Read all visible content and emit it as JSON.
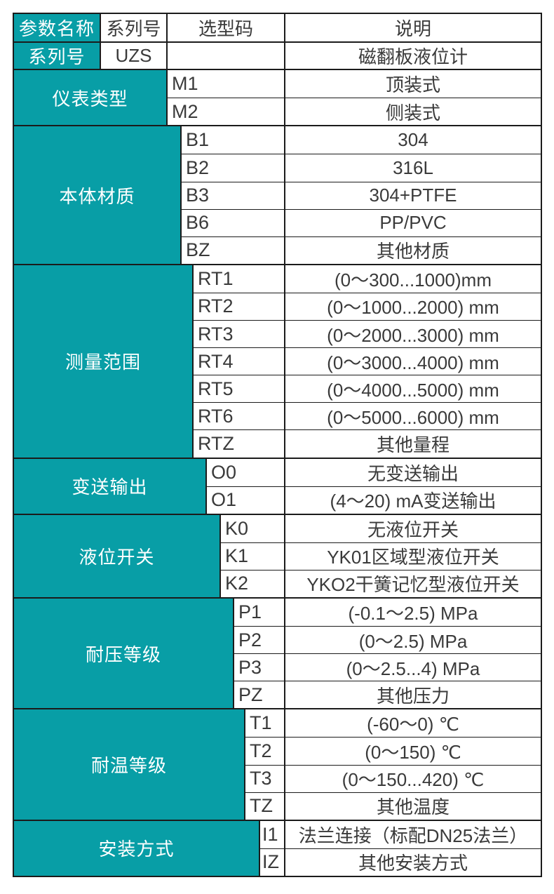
{
  "colors": {
    "teal": "#089ea6",
    "border": "#1b1b1b",
    "text": "#3a3a3a",
    "background": "#ffffff"
  },
  "table": {
    "header": {
      "param_name": "参数名称",
      "series_no": "系列号",
      "selection_code": "选型码",
      "description": "说明"
    },
    "series": {
      "label": "系列号",
      "code": "UZS",
      "desc": "磁翻板液位计"
    },
    "groups": [
      {
        "label": "仪表类型",
        "rows": [
          {
            "code": "M1",
            "desc": "顶装式"
          },
          {
            "code": "M2",
            "desc": "侧装式"
          }
        ]
      },
      {
        "label": "本体材质",
        "rows": [
          {
            "code": "B1",
            "desc": "304"
          },
          {
            "code": "B2",
            "desc": "316L"
          },
          {
            "code": "B3",
            "desc": "304+PTFE"
          },
          {
            "code": "B6",
            "desc": "PP/PVC"
          },
          {
            "code": "BZ",
            "desc": "其他材质"
          }
        ]
      },
      {
        "label": "测量范围",
        "rows": [
          {
            "code": "RT1",
            "desc": "(0～300...1000)mm"
          },
          {
            "code": "RT2",
            "desc": "(0～1000...2000) mm"
          },
          {
            "code": "RT3",
            "desc": "(0～2000...3000) mm"
          },
          {
            "code": "RT4",
            "desc": "(0～3000...4000) mm"
          },
          {
            "code": "RT5",
            "desc": "(0～4000...5000) mm"
          },
          {
            "code": "RT6",
            "desc": "(0～5000...6000) mm"
          },
          {
            "code": "RTZ",
            "desc": "其他量程"
          }
        ]
      },
      {
        "label": "变送输出",
        "rows": [
          {
            "code": "O0",
            "desc": "无变送输出"
          },
          {
            "code": "O1",
            "desc": "(4～20) mA变送输出"
          }
        ]
      },
      {
        "label": "液位开关",
        "rows": [
          {
            "code": "K0",
            "desc": "无液位开关"
          },
          {
            "code": "K1",
            "desc": "YK01区域型液位开关"
          },
          {
            "code": "K2",
            "desc": "YKO2干簧记忆型液位开关"
          }
        ]
      },
      {
        "label": "耐压等级",
        "rows": [
          {
            "code": "P1",
            "desc": "(-0.1～2.5) MPa"
          },
          {
            "code": "P2",
            "desc": "(0～2.5) MPa"
          },
          {
            "code": "P3",
            "desc": "(0～2.5...4) MPa"
          },
          {
            "code": "PZ",
            "desc": "其他压力"
          }
        ]
      },
      {
        "label": "耐温等级",
        "rows": [
          {
            "code": "T1",
            "desc": "(-60～0) ℃"
          },
          {
            "code": "T2",
            "desc": "(0～150) ℃"
          },
          {
            "code": "T3",
            "desc": "(0～150...420) ℃"
          },
          {
            "code": "TZ",
            "desc": "其他温度"
          }
        ]
      },
      {
        "label": "安装方式",
        "rows": [
          {
            "code": "I1",
            "desc": "法兰连接（标配DN25法兰）"
          },
          {
            "code": "IZ",
            "desc": "其他安装方式"
          }
        ]
      }
    ]
  }
}
